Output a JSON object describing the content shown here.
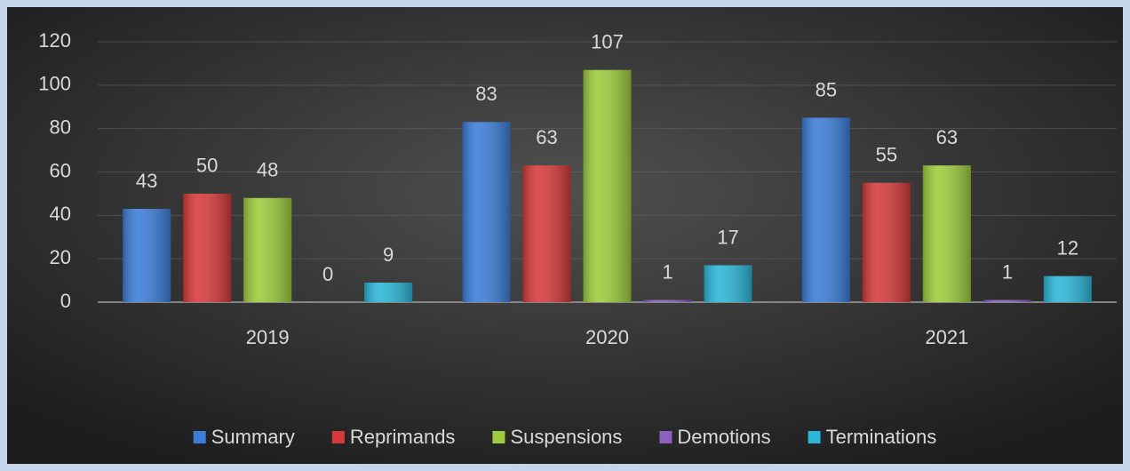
{
  "chart_data": {
    "type": "bar",
    "categories": [
      "2019",
      "2020",
      "2021"
    ],
    "series": [
      {
        "name": "Summary",
        "color": "#3b7dd8",
        "values": [
          43,
          83,
          85
        ]
      },
      {
        "name": "Reprimands",
        "color": "#d63a3a",
        "values": [
          50,
          63,
          55
        ]
      },
      {
        "name": "Suspensions",
        "color": "#9dcc3c",
        "values": [
          48,
          107,
          63
        ]
      },
      {
        "name": "Demotions",
        "color": "#8a60c0",
        "values": [
          0,
          1,
          1
        ]
      },
      {
        "name": "Terminations",
        "color": "#2bb7d8",
        "values": [
          9,
          17,
          12
        ]
      }
    ],
    "ylim": [
      0,
      120
    ],
    "yticks": [
      0,
      20,
      40,
      60,
      80,
      100,
      120
    ],
    "grid": true,
    "legend": "bottom"
  }
}
